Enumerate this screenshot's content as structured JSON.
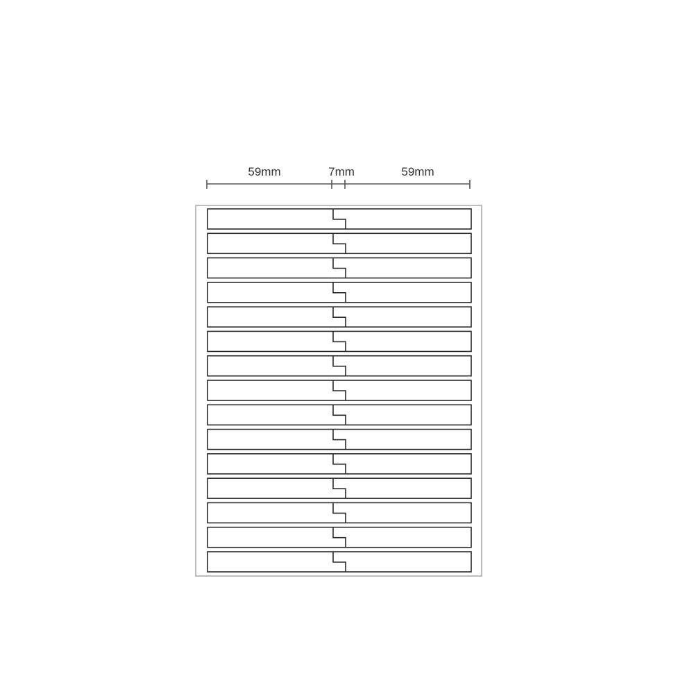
{
  "dimensions": {
    "left_width": "59mm",
    "gap_width": "7mm",
    "right_width": "59mm"
  },
  "sheet": {
    "label_rows": 15,
    "labels_per_row": 2,
    "stroke_color": "#2a2a2a",
    "sheet_border_color": "#bdbdbd"
  }
}
